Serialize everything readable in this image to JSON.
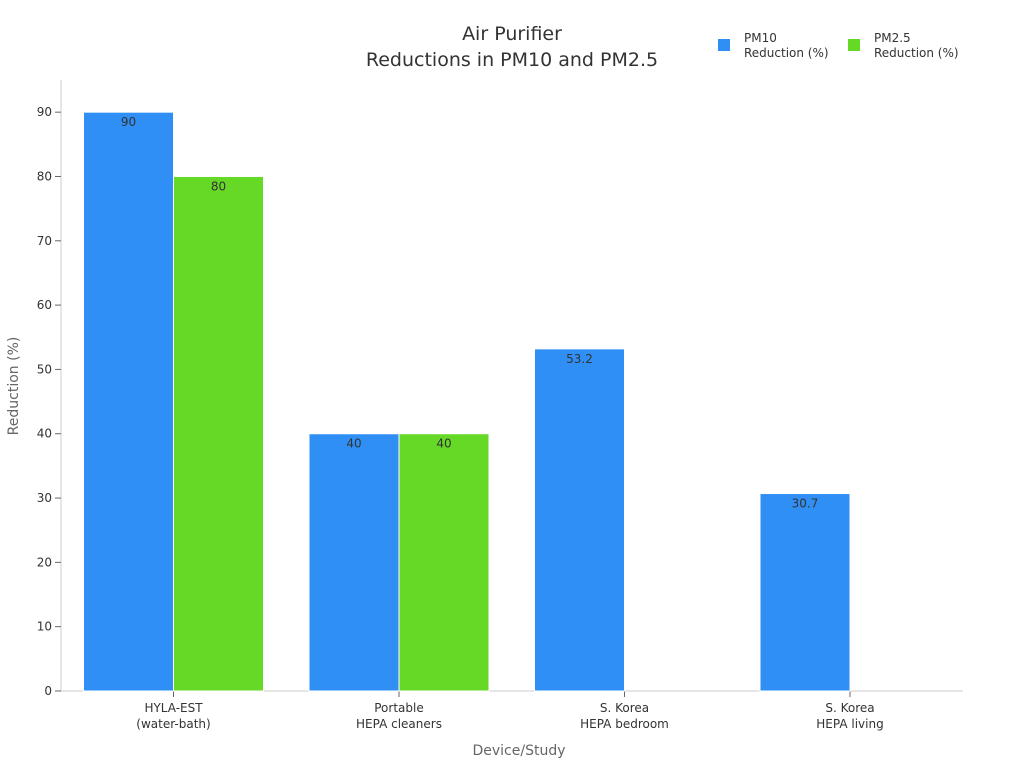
{
  "chart_data": {
    "type": "bar",
    "title_lines": [
      "Air Purifier",
      "Reductions in PM10 and PM2.5"
    ],
    "xlabel": "Device/Study",
    "ylabel": "Reduction (%)",
    "ylim": [
      0,
      95
    ],
    "yticks": [
      0,
      10,
      20,
      30,
      40,
      50,
      60,
      70,
      80,
      90
    ],
    "categories": [
      [
        "HYLA-EST",
        "(water-bath)"
      ],
      [
        "Portable",
        "HEPA cleaners"
      ],
      [
        "S. Korea",
        "HEPA bedroom"
      ],
      [
        "S. Korea",
        "HEPA living"
      ]
    ],
    "series": [
      {
        "name_lines": [
          "PM10",
          "Reduction (%)"
        ],
        "color": "#2f8ff5",
        "values": [
          90,
          40,
          53.2,
          30.7
        ]
      },
      {
        "name_lines": [
          "PM2.5",
          "Reduction (%)"
        ],
        "color": "#66d926",
        "values": [
          80,
          40,
          null,
          null
        ]
      }
    ],
    "legend_position": "top-right",
    "grid": false
  }
}
